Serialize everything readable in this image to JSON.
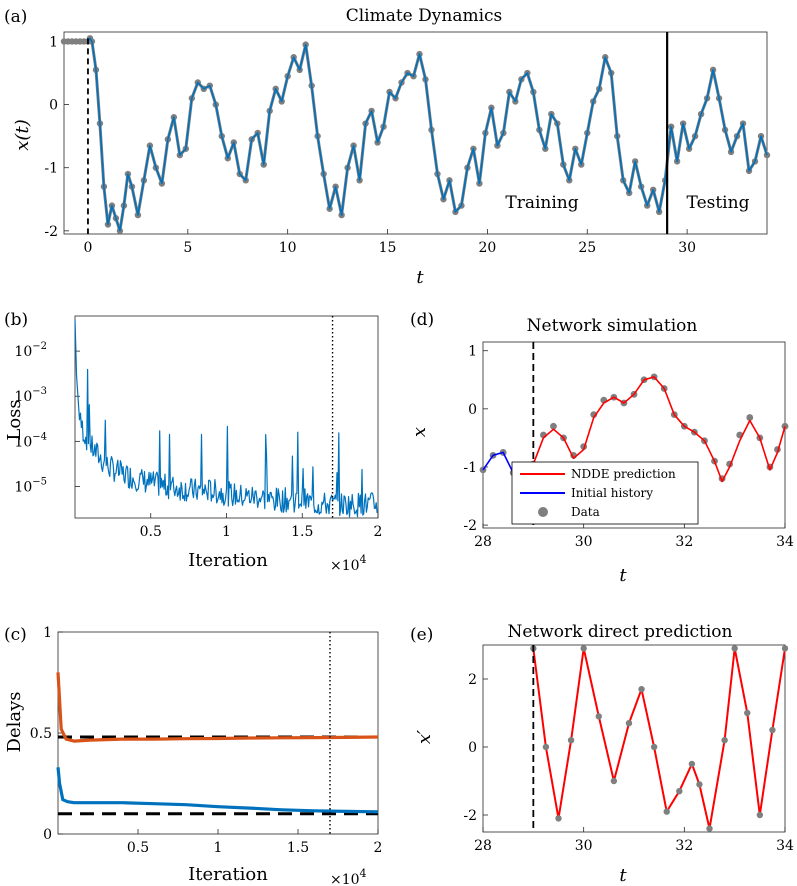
{
  "colors": {
    "data_gray": "#7f7f7f",
    "model_blue": "#0072bd",
    "model_red": "#ff0000",
    "history_blue": "#0000ff",
    "delay_orange": "#d95319",
    "delay_blue": "#0072bd"
  },
  "chart_data": [
    {
      "panel": "(a)",
      "type": "line",
      "title": "Climate Dynamics",
      "xlabel": "t",
      "ylabel": "x(t)",
      "xlim": [
        -1.2,
        34
      ],
      "ylim": [
        -2.05,
        1.15
      ],
      "xticks": [
        0,
        5,
        10,
        15,
        20,
        25,
        30
      ],
      "yticks": [
        -2,
        -1,
        0,
        1
      ],
      "annotations": [
        "Training",
        "Testing"
      ],
      "train_test_split_t": 29,
      "history_marker_t": 0,
      "series": [
        {
          "name": "Data",
          "x": [
            -1.2,
            -1,
            -0.8,
            -0.6,
            -0.4,
            -0.2,
            0,
            0.1,
            0.2,
            0.4,
            0.6,
            0.8,
            1.0,
            1.2,
            1.4,
            1.6,
            1.8,
            2.0,
            2.2,
            2.5,
            2.8,
            3.1,
            3.4,
            3.7,
            4.0,
            4.3,
            4.6,
            4.9,
            5.2,
            5.5,
            5.8,
            6.1,
            6.4,
            6.7,
            7.0,
            7.3,
            7.6,
            7.9,
            8.2,
            8.5,
            8.8,
            9.1,
            9.4,
            9.7,
            10.0,
            10.3,
            10.6,
            10.9,
            11.2,
            11.5,
            11.8,
            12.1,
            12.4,
            12.7,
            13.0,
            13.3,
            13.6,
            13.9,
            14.2,
            14.5,
            14.8,
            15.1,
            15.4,
            15.7,
            16.0,
            16.3,
            16.6,
            16.9,
            17.2,
            17.5,
            17.8,
            18.1,
            18.4,
            18.7,
            19.0,
            19.3,
            19.6,
            19.9,
            20.2,
            20.5,
            20.8,
            21.1,
            21.4,
            21.7,
            22.0,
            22.3,
            22.6,
            22.9,
            23.2,
            23.5,
            23.8,
            24.1,
            24.4,
            24.7,
            25.0,
            25.3,
            25.6,
            25.9,
            26.2,
            26.5,
            26.8,
            27.1,
            27.4,
            27.7,
            28.0,
            28.3,
            28.6,
            28.9,
            29.2,
            29.5,
            29.8,
            30.1,
            30.4,
            30.7,
            31.0,
            31.3,
            31.6,
            31.9,
            32.2,
            32.5,
            32.8,
            33.1,
            33.4,
            33.7,
            34.0
          ],
          "y": [
            1.0,
            1.0,
            1.0,
            1.0,
            1.0,
            1.0,
            1.0,
            1.05,
            1.0,
            0.55,
            -0.3,
            -1.3,
            -1.9,
            -1.6,
            -1.8,
            -2.0,
            -1.6,
            -1.1,
            -1.3,
            -1.75,
            -1.2,
            -0.65,
            -1.0,
            -1.25,
            -0.55,
            -0.2,
            -0.8,
            -0.7,
            0.1,
            0.35,
            0.25,
            0.3,
            0.0,
            -0.5,
            -0.85,
            -0.6,
            -1.1,
            -1.2,
            -0.55,
            -0.45,
            -0.95,
            -0.1,
            0.25,
            0.05,
            0.45,
            0.75,
            0.55,
            0.95,
            0.3,
            -0.5,
            -1.1,
            -1.65,
            -1.3,
            -1.75,
            -1.0,
            -0.65,
            -1.2,
            -0.3,
            -0.1,
            -0.6,
            -0.35,
            0.2,
            0.1,
            0.35,
            0.5,
            0.45,
            0.8,
            0.4,
            -0.4,
            -1.1,
            -1.5,
            -1.2,
            -1.7,
            -1.6,
            -1.0,
            -0.7,
            -1.25,
            -0.45,
            -0.05,
            -0.65,
            -0.45,
            0.2,
            0.05,
            0.4,
            0.5,
            0.2,
            -0.4,
            -0.7,
            -0.15,
            -0.3,
            -0.95,
            -1.2,
            -0.7,
            -0.95,
            -0.45,
            0.05,
            0.25,
            0.75,
            0.5,
            -0.5,
            -1.2,
            -1.4,
            -0.9,
            -1.3,
            -1.6,
            -1.35,
            -1.7,
            -1.2,
            -0.35,
            -0.9,
            -0.3,
            -0.7,
            -0.5,
            -0.15,
            0.1,
            0.55,
            0.1,
            -0.4,
            -0.75,
            -0.5,
            -0.3,
            -1.05,
            -0.9,
            -0.5,
            -0.8
          ]
        }
      ]
    },
    {
      "panel": "(b)",
      "type": "line",
      "title": "",
      "xlabel": "Iteration",
      "x_exponent": "×10",
      "x_exponent_power": "4",
      "ylabel": "Loss",
      "yscale": "log",
      "xlim": [
        0,
        20000
      ],
      "ylim": [
        2e-06,
        0.06
      ],
      "xticks": [
        0.5,
        1,
        1.5,
        2
      ],
      "ytick_powers": [
        "-2",
        "-3",
        "-4",
        "-5"
      ],
      "vline_iteration": 17000,
      "series": [
        {
          "name": "",
          "x": [
            0,
            100,
            300,
            600,
            1000,
            1500,
            2000,
            3000,
            4000,
            5000,
            6000,
            7000,
            8000,
            9000,
            10000,
            11000,
            12000,
            13000,
            14000,
            15000,
            16000,
            17000,
            18000,
            19000,
            20000
          ],
          "y": [
            0.05,
            0.003,
            0.0003,
            0.00015,
            8e-05,
            5e-05,
            3e-05,
            2e-05,
            1.5e-05,
            1.2e-05,
            1e-05,
            9e-06,
            8e-06,
            8e-06,
            7e-06,
            6e-06,
            6e-06,
            5e-06,
            5e-06,
            5e-06,
            4e-06,
            4e-06,
            4e-06,
            4e-06,
            4e-06
          ]
        }
      ]
    },
    {
      "panel": "(c)",
      "type": "line",
      "title": "",
      "xlabel": "Iteration",
      "x_exponent": "×10",
      "x_exponent_power": "4",
      "ylabel": "Delays",
      "xlim": [
        0,
        20000
      ],
      "ylim": [
        0,
        1.0
      ],
      "xticks": [
        0.5,
        1,
        1.5,
        2
      ],
      "yticks": [
        0,
        0.5,
        1
      ],
      "vline_iteration": 17000,
      "true_delays": [
        0.48,
        0.1
      ],
      "series": [
        {
          "name": "",
          "x": [
            0,
            200,
            500,
            1000,
            2000,
            4000,
            6000,
            8000,
            10000,
            12000,
            14000,
            16000,
            18000,
            20000
          ],
          "y": [
            0.8,
            0.52,
            0.47,
            0.46,
            0.465,
            0.47,
            0.47,
            0.472,
            0.473,
            0.475,
            0.476,
            0.477,
            0.478,
            0.48
          ]
        },
        {
          "name": "",
          "x": [
            0,
            100,
            300,
            600,
            1000,
            2000,
            4000,
            6000,
            8000,
            10000,
            12000,
            14000,
            16000,
            18000,
            20000
          ],
          "y": [
            0.33,
            0.25,
            0.17,
            0.16,
            0.155,
            0.155,
            0.155,
            0.15,
            0.145,
            0.135,
            0.128,
            0.12,
            0.115,
            0.112,
            0.11
          ]
        }
      ]
    },
    {
      "panel": "(d)",
      "type": "line",
      "title": "Network simulation",
      "xlabel": "t",
      "ylabel": "x",
      "xlim": [
        28,
        34
      ],
      "ylim": [
        -2.05,
        1.15
      ],
      "xticks": [
        28,
        30,
        32,
        34
      ],
      "yticks": [
        -2,
        -1,
        0,
        1
      ],
      "vline_t": 29,
      "legend": [
        "NDDE prediction",
        "Initial history",
        "Data"
      ],
      "legend_position": "bottom-left",
      "series": [
        {
          "name": "NDDE prediction",
          "x": [
            29.0,
            29.2,
            29.4,
            29.6,
            29.8,
            30.0,
            30.2,
            30.4,
            30.6,
            30.8,
            31.0,
            31.2,
            31.4,
            31.6,
            31.8,
            32.0,
            32.2,
            32.4,
            32.6,
            32.75,
            32.9,
            33.1,
            33.3,
            33.5,
            33.7,
            33.85,
            34.0
          ],
          "y": [
            -0.95,
            -0.5,
            -0.35,
            -0.5,
            -0.85,
            -0.7,
            -0.15,
            0.1,
            0.2,
            0.1,
            0.25,
            0.5,
            0.55,
            0.35,
            -0.1,
            -0.3,
            -0.4,
            -0.55,
            -0.9,
            -1.25,
            -1.0,
            -0.55,
            -0.2,
            -0.5,
            -1.05,
            -0.75,
            -0.3
          ]
        },
        {
          "name": "Initial history",
          "x": [
            28.0,
            28.2,
            28.4,
            28.6,
            28.8,
            29.0
          ],
          "y": [
            -1.05,
            -0.8,
            -0.75,
            -1.1,
            -1.3,
            -0.95
          ]
        },
        {
          "name": "Data",
          "x": [
            28.0,
            28.2,
            28.4,
            28.6,
            28.8,
            29.0,
            29.2,
            29.4,
            29.6,
            29.8,
            30.0,
            30.2,
            30.4,
            30.6,
            30.8,
            31.0,
            31.2,
            31.4,
            31.6,
            31.8,
            32.0,
            32.2,
            32.4,
            32.6,
            32.75,
            32.9,
            33.1,
            33.3,
            33.5,
            33.7,
            33.85,
            34.0
          ],
          "y": [
            -1.05,
            -0.8,
            -0.75,
            -1.1,
            -1.3,
            -0.95,
            -0.45,
            -0.3,
            -0.5,
            -0.8,
            -0.65,
            -0.1,
            0.15,
            0.2,
            0.1,
            0.25,
            0.5,
            0.55,
            0.35,
            -0.1,
            -0.3,
            -0.4,
            -0.55,
            -0.9,
            -1.2,
            -0.95,
            -0.45,
            -0.15,
            -0.5,
            -1.0,
            -0.7,
            -0.3
          ]
        }
      ]
    },
    {
      "panel": "(e)",
      "type": "line",
      "title": "Network direct prediction",
      "xlabel": "t",
      "ylabel": "x′",
      "xlim": [
        28,
        34
      ],
      "ylim": [
        -2.5,
        3.0
      ],
      "xticks": [
        28,
        30,
        32,
        34
      ],
      "yticks": [
        -2,
        0,
        2
      ],
      "vline_t": 29,
      "series": [
        {
          "name": "",
          "x": [
            29.0,
            29.25,
            29.5,
            29.75,
            30.0,
            30.3,
            30.6,
            30.9,
            31.15,
            31.4,
            31.65,
            31.9,
            32.15,
            32.3,
            32.5,
            32.8,
            33.0,
            33.25,
            33.5,
            33.75,
            34.0
          ],
          "y": [
            2.9,
            0.0,
            -2.1,
            0.2,
            2.9,
            0.9,
            -1.0,
            0.7,
            1.7,
            0.0,
            -1.9,
            -1.3,
            -0.5,
            -1.1,
            -2.4,
            0.2,
            2.9,
            1.0,
            -2.0,
            0.5,
            2.9
          ]
        }
      ]
    }
  ]
}
